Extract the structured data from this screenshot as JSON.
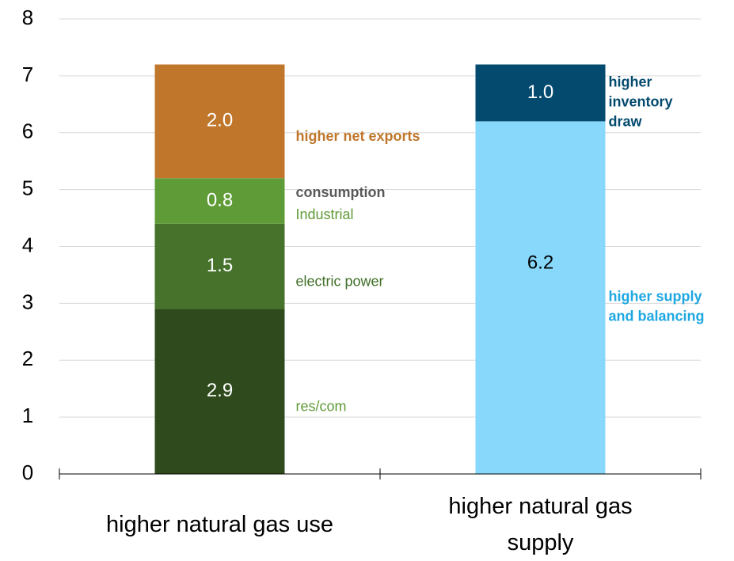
{
  "chart_data": {
    "type": "stacked_bar",
    "categories": [
      "higher natural gas use",
      "higher natural gas supply"
    ],
    "series": [
      {
        "name": "res/com",
        "color": "#2f4b1d",
        "label_color": "#5f9b37",
        "value_color": "#ffffff",
        "values": [
          2.9,
          null
        ]
      },
      {
        "name": "electric power",
        "color": "#46722c",
        "label_color": "#3f6e26",
        "value_color": "#ffffff",
        "values": [
          1.5,
          null
        ]
      },
      {
        "name": "Industrial",
        "color": "#5f9b37",
        "label_color": "#5f9b37",
        "value_color": "#ffffff",
        "values": [
          0.8,
          null
        ],
        "annotation": "consumption",
        "annotation_color": "#595959"
      },
      {
        "name": "higher net exports",
        "color": "#c0772c",
        "label_color": "#c0772c",
        "value_color": "#ffffff",
        "bold": true,
        "values": [
          2.0,
          null
        ],
        "value_labels": [
          "2.0",
          null
        ]
      },
      {
        "name": "higher supply and balancing",
        "color": "#87d8fb",
        "label_color": "#1ea7e1",
        "value_color": "#000000",
        "bold": true,
        "values": [
          null,
          6.2
        ]
      },
      {
        "name": "higher inventory draw",
        "color": "#034a6e",
        "label_color": "#034a6e",
        "value_color": "#ffffff",
        "bold": true,
        "values": [
          null,
          1.0
        ],
        "value_labels": [
          null,
          "1.0"
        ]
      }
    ],
    "ylim": [
      0,
      8
    ],
    "yticks": [
      0,
      1,
      2,
      3,
      4,
      5,
      6,
      7,
      8
    ],
    "grid": true
  }
}
